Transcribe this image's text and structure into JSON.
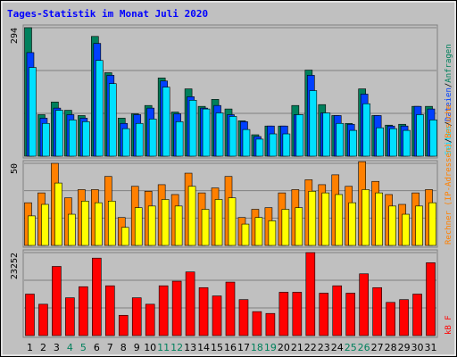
{
  "chart_data": [
    {
      "type": "bar",
      "title": "Tages-Statistik im Monat Juli 2020",
      "ylim": [
        0,
        294
      ],
      "yticks": [
        294
      ],
      "grid": true,
      "legend_separator": "/",
      "series": [
        {
          "name": "Anfragen",
          "color": "#00805c",
          "values": [
            294,
            95,
            124,
            105,
            93,
            274,
            191,
            87,
            97,
            116,
            179,
            101,
            154,
            114,
            130,
            108,
            81,
            49,
            69,
            69,
            116,
            197,
            118,
            93,
            75,
            154,
            93,
            71,
            73,
            114,
            114
          ]
        },
        {
          "name": "Dateien",
          "color": "#0040ff",
          "values": [
            237,
            87,
            110,
            95,
            87,
            258,
            185,
            75,
            95,
            110,
            172,
            97,
            136,
            110,
            116,
            95,
            79,
            45,
            69,
            69,
            95,
            185,
            99,
            93,
            73,
            142,
            93,
            69,
            69,
            114,
            108
          ]
        },
        {
          "name": "Seiten",
          "color": "#00e0ff",
          "values": [
            203,
            75,
            105,
            83,
            79,
            219,
            166,
            63,
            75,
            85,
            158,
            79,
            128,
            108,
            99,
            91,
            61,
            39,
            51,
            51,
            95,
            150,
            99,
            75,
            59,
            120,
            65,
            63,
            59,
            95,
            83
          ]
        }
      ]
    },
    {
      "type": "bar",
      "ylim": [
        0,
        50
      ],
      "yticks": [
        50
      ],
      "grid": true,
      "legend_separator": "/",
      "series": [
        {
          "name": "Besuche",
          "color": "#ff8000",
          "values": [
            26,
            32,
            50,
            29,
            34,
            34,
            42,
            17,
            36,
            33,
            37,
            31,
            44,
            32,
            35,
            42,
            17,
            22,
            23,
            32,
            34,
            40,
            37,
            43,
            36,
            51,
            39,
            31,
            25,
            32,
            34
          ]
        },
        {
          "name": "Rechner (IP-Adressen)",
          "color": "#ffff00",
          "label_color": "#ff8000",
          "values": [
            18,
            25,
            38,
            19,
            27,
            26,
            27,
            11,
            23,
            24,
            28,
            24,
            36,
            22,
            28,
            29,
            13,
            17,
            15,
            22,
            23,
            33,
            32,
            31,
            26,
            34,
            32,
            24,
            19,
            24,
            26
          ]
        }
      ]
    },
    {
      "type": "bar",
      "ylim": [
        0,
        23252
      ],
      "yticks": [
        23252
      ],
      "grid": true,
      "categories": [
        "1",
        "2",
        "3",
        "4",
        "5",
        "6",
        "7",
        "8",
        "9",
        "10",
        "11",
        "12",
        "13",
        "14",
        "15",
        "16",
        "17",
        "18",
        "19",
        "20",
        "21",
        "22",
        "23",
        "24",
        "25",
        "26",
        "27",
        "28",
        "29",
        "30",
        "31"
      ],
      "category_colors": [
        "#000000",
        "#000000",
        "#000000",
        "#00805c",
        "#00805c",
        "#000000",
        "#000000",
        "#000000",
        "#000000",
        "#000000",
        "#00805c",
        "#00805c",
        "#000000",
        "#000000",
        "#000000",
        "#000000",
        "#000000",
        "#00805c",
        "#00805c",
        "#000000",
        "#000000",
        "#000000",
        "#000000",
        "#000000",
        "#00805c",
        "#00805c",
        "#000000",
        "#000000",
        "#000000",
        "#000000",
        "#000000"
      ],
      "series": [
        {
          "name": "kB F",
          "color": "#ff0000",
          "values": [
            11627,
            8785,
            19378,
            10593,
            13693,
            21702,
            13951,
            5684,
            10593,
            8785,
            13951,
            15243,
            17827,
            13434,
            11110,
            14985,
            10076,
            6717,
            6201,
            12143,
            12143,
            23252,
            11885,
            13951,
            11885,
            17310,
            13434,
            9301,
            10076,
            11627,
            20410
          ]
        }
      ]
    }
  ]
}
